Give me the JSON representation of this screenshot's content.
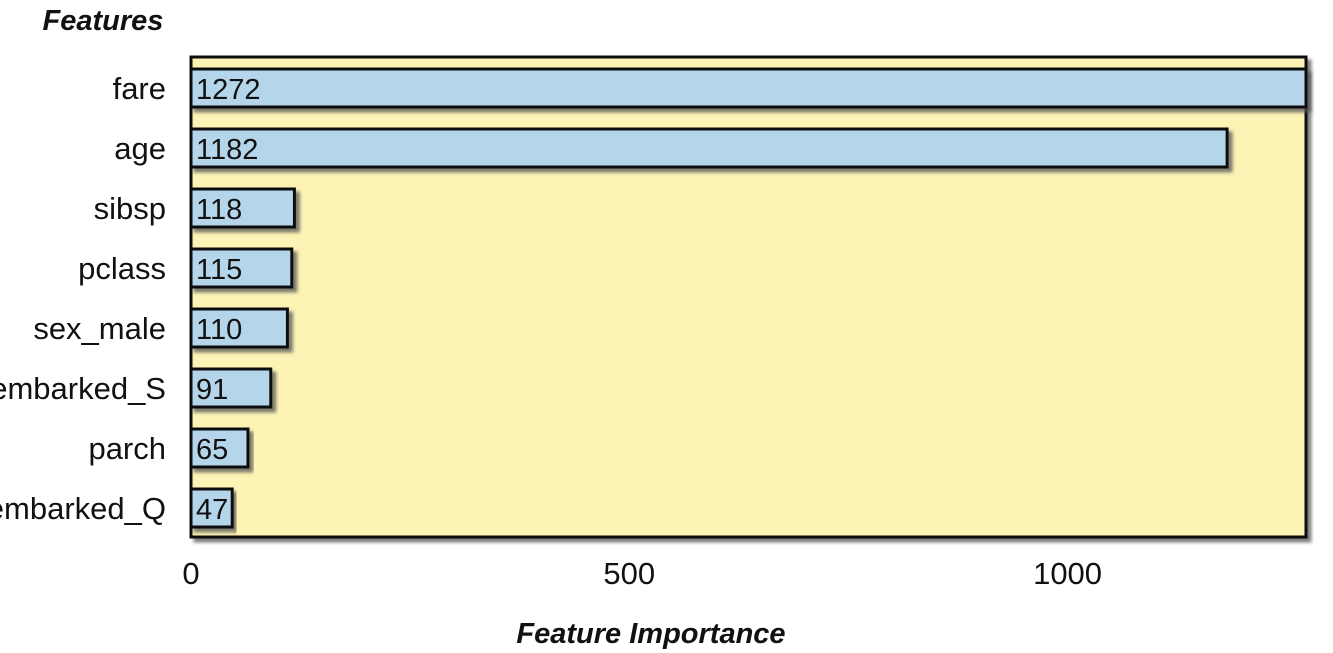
{
  "chart_data": {
    "type": "bar",
    "orientation": "horizontal",
    "categories": [
      "fare",
      "age",
      "sibsp",
      "pclass",
      "sex_male",
      "embarked_S",
      "parch",
      "embarked_Q"
    ],
    "values": [
      1272,
      1182,
      118,
      115,
      110,
      91,
      65,
      47
    ],
    "data_labels": [
      "1272",
      "1182",
      "118",
      "115",
      "110",
      "91",
      "65",
      "47"
    ],
    "xlabel": "Feature Importance",
    "ylabel": "Features",
    "xlim": [
      0,
      1272
    ],
    "x_ticks": [
      0,
      500,
      1000
    ],
    "x_tick_labels": [
      "0",
      "500",
      "1000"
    ],
    "grid": false,
    "colors": {
      "plot_background": "#fcf3b4",
      "bar_fill": "#b5d6ea",
      "bar_stroke": "#111111",
      "shadow": "#555555"
    }
  }
}
